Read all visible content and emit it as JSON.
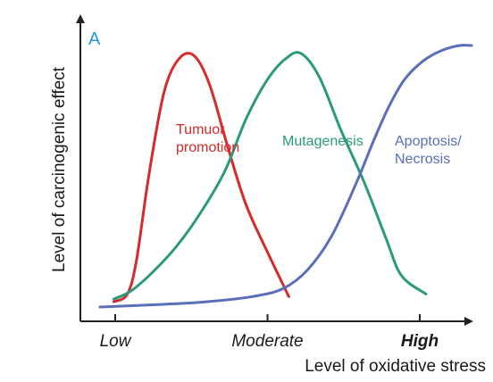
{
  "panel_label": "A",
  "colors": {
    "tumour": "#d62b2b",
    "mutagenesis": "#2b9a78",
    "apoptosis": "#5a6fb8",
    "axis": "#222222",
    "panel": "#1f9ad6"
  },
  "chart_data": {
    "type": "line",
    "title": "",
    "xlabel": "Level of oxidative stress",
    "ylabel": "Level of carcinogenic effect",
    "x_ticks": [
      {
        "label": "Low",
        "x": 0,
        "bold": false
      },
      {
        "label": "Moderate",
        "x": 0.5,
        "bold": false
      },
      {
        "label": "High",
        "x": 1,
        "bold": true
      }
    ],
    "xlim": [
      -0.05,
      1.17
    ],
    "ylim": [
      0,
      1.0
    ],
    "series": [
      {
        "name": "Tumuor promotion",
        "label_lines": [
          "Tumuor",
          "promotion"
        ],
        "color": "tumour",
        "points": [
          [
            -0.005,
            0.02
          ],
          [
            0.04,
            0.05
          ],
          [
            0.07,
            0.18
          ],
          [
            0.11,
            0.5
          ],
          [
            0.16,
            0.82
          ],
          [
            0.21,
            0.95
          ],
          [
            0.26,
            0.96
          ],
          [
            0.31,
            0.85
          ],
          [
            0.37,
            0.61
          ],
          [
            0.43,
            0.39
          ],
          [
            0.5,
            0.21
          ],
          [
            0.57,
            0.04
          ]
        ]
      },
      {
        "name": "Mutagenesis",
        "label_lines": [
          "Mutagenesis"
        ],
        "color": "mutagenesis",
        "points": [
          [
            -0.005,
            0.03
          ],
          [
            0.05,
            0.06
          ],
          [
            0.12,
            0.13
          ],
          [
            0.2,
            0.23
          ],
          [
            0.28,
            0.36
          ],
          [
            0.36,
            0.52
          ],
          [
            0.43,
            0.72
          ],
          [
            0.5,
            0.87
          ],
          [
            0.56,
            0.95
          ],
          [
            0.61,
            0.97
          ],
          [
            0.67,
            0.88
          ],
          [
            0.74,
            0.68
          ],
          [
            0.82,
            0.47
          ],
          [
            0.89,
            0.26
          ],
          [
            0.94,
            0.12
          ],
          [
            1.02,
            0.05
          ]
        ]
      },
      {
        "name": "Apoptosis/ Necrosis",
        "label_lines": [
          "Apoptosis/",
          "Necrosis"
        ],
        "color": "apoptosis",
        "points": [
          [
            -0.05,
            0.0
          ],
          [
            0.15,
            0.01
          ],
          [
            0.3,
            0.02
          ],
          [
            0.45,
            0.04
          ],
          [
            0.55,
            0.07
          ],
          [
            0.63,
            0.14
          ],
          [
            0.71,
            0.27
          ],
          [
            0.79,
            0.47
          ],
          [
            0.85,
            0.64
          ],
          [
            0.9,
            0.77
          ],
          [
            0.95,
            0.87
          ],
          [
            1.01,
            0.94
          ],
          [
            1.07,
            0.98
          ],
          [
            1.13,
            1.0
          ],
          [
            1.17,
            1.0
          ]
        ]
      }
    ]
  }
}
